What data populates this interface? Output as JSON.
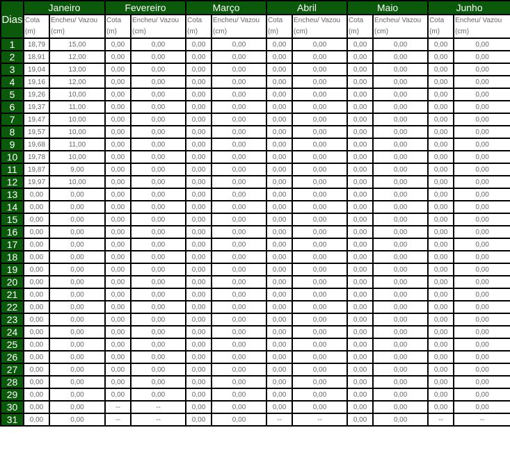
{
  "header": {
    "dias": "Dias",
    "months": [
      "Janeiro",
      "Fevereiro",
      "Março",
      "Abril",
      "Maio",
      "Junho"
    ],
    "cota_label": "Cota (m)",
    "encheu_label": "Encheu/ Vazou (cm)"
  },
  "colors": {
    "header_green": "#0b5a0b",
    "border": "#000000",
    "text": "#666666"
  },
  "rows": [
    [
      "18,79",
      "15,00",
      "0,00",
      "0,00",
      "0,00",
      "0,00",
      "0,00",
      "0,00",
      "0,00",
      "0,00",
      "0,00",
      "0,00"
    ],
    [
      "18,91",
      "12,00",
      "0,00",
      "0,00",
      "0,00",
      "0,00",
      "0,00",
      "0,00",
      "0,00",
      "0,00",
      "0,00",
      "0,00"
    ],
    [
      "19,04",
      "13,00",
      "0,00",
      "0,00",
      "0,00",
      "0,00",
      "0,00",
      "0,00",
      "0,00",
      "0,00",
      "0,00",
      "0,00"
    ],
    [
      "19,16",
      "12,00",
      "0,00",
      "0,00",
      "0,00",
      "0,00",
      "0,00",
      "0,00",
      "0,00",
      "0,00",
      "0,00",
      "0,00"
    ],
    [
      "19,26",
      "10,00",
      "0,00",
      "0,00",
      "0,00",
      "0,00",
      "0,00",
      "0,00",
      "0,00",
      "0,00",
      "0,00",
      "0,00"
    ],
    [
      "19,37",
      "11,00",
      "0,00",
      "0,00",
      "0,00",
      "0,00",
      "0,00",
      "0,00",
      "0,00",
      "0,00",
      "0,00",
      "0,00"
    ],
    [
      "19,47",
      "10,00",
      "0,00",
      "0,00",
      "0,00",
      "0,00",
      "0,00",
      "0,00",
      "0,00",
      "0,00",
      "0,00",
      "0,00"
    ],
    [
      "19,57",
      "10,00",
      "0,00",
      "0,00",
      "0,00",
      "0,00",
      "0,00",
      "0,00",
      "0,00",
      "0,00",
      "0,00",
      "0,00"
    ],
    [
      "19,68",
      "11,00",
      "0,00",
      "0,00",
      "0,00",
      "0,00",
      "0,00",
      "0,00",
      "0,00",
      "0,00",
      "0,00",
      "0,00"
    ],
    [
      "19,78",
      "10,00",
      "0,00",
      "0,00",
      "0,00",
      "0,00",
      "0,00",
      "0,00",
      "0,00",
      "0,00",
      "0,00",
      "0,00"
    ],
    [
      "19,87",
      "9,00",
      "0,00",
      "0,00",
      "0,00",
      "0,00",
      "0,00",
      "0,00",
      "0,00",
      "0,00",
      "0,00",
      "0,00"
    ],
    [
      "19,97",
      "10,00",
      "0,00",
      "0,00",
      "0,00",
      "0,00",
      "0,00",
      "0,00",
      "0,00",
      "0,00",
      "0,00",
      "0,00"
    ],
    [
      "0,00",
      "0,00",
      "0,00",
      "0,00",
      "0,00",
      "0,00",
      "0,00",
      "0,00",
      "0,00",
      "0,00",
      "0,00",
      "0,00"
    ],
    [
      "0,00",
      "0,00",
      "0,00",
      "0,00",
      "0,00",
      "0,00",
      "0,00",
      "0,00",
      "0,00",
      "0,00",
      "0,00",
      "0,00"
    ],
    [
      "0,00",
      "0,00",
      "0,00",
      "0,00",
      "0,00",
      "0,00",
      "0,00",
      "0,00",
      "0,00",
      "0,00",
      "0,00",
      "0,00"
    ],
    [
      "0,00",
      "0,00",
      "0,00",
      "0,00",
      "0,00",
      "0,00",
      "0,00",
      "0,00",
      "0,00",
      "0,00",
      "0,00",
      "0,00"
    ],
    [
      "0,00",
      "0,00",
      "0,00",
      "0,00",
      "0,00",
      "0,00",
      "0,00",
      "0,00",
      "0,00",
      "0,00",
      "0,00",
      "0,00"
    ],
    [
      "0,00",
      "0,00",
      "0,00",
      "0,00",
      "0,00",
      "0,00",
      "0,00",
      "0,00",
      "0,00",
      "0,00",
      "0,00",
      "0,00"
    ],
    [
      "0,00",
      "0,00",
      "0,00",
      "0,00",
      "0,00",
      "0,00",
      "0,00",
      "0,00",
      "0,00",
      "0,00",
      "0,00",
      "0,00"
    ],
    [
      "0,00",
      "0,00",
      "0,00",
      "0,00",
      "0,00",
      "0,00",
      "0,00",
      "0,00",
      "0,00",
      "0,00",
      "0,00",
      "0,00"
    ],
    [
      "0,00",
      "0,00",
      "0,00",
      "0,00",
      "0,00",
      "0,00",
      "0,00",
      "0,00",
      "0,00",
      "0,00",
      "0,00",
      "0,00"
    ],
    [
      "0,00",
      "0,00",
      "0,00",
      "0,00",
      "0,00",
      "0,00",
      "0,00",
      "0,00",
      "0,00",
      "0,00",
      "0,00",
      "0,00"
    ],
    [
      "0,00",
      "0,00",
      "0,00",
      "0,00",
      "0,00",
      "0,00",
      "0,00",
      "0,00",
      "0,00",
      "0,00",
      "0,00",
      "0,00"
    ],
    [
      "0,00",
      "0,00",
      "0,00",
      "0,00",
      "0,00",
      "0,00",
      "0,00",
      "0,00",
      "0,00",
      "0,00",
      "0,00",
      "0,00"
    ],
    [
      "0,00",
      "0,00",
      "0,00",
      "0,00",
      "0,00",
      "0,00",
      "0,00",
      "0,00",
      "0,00",
      "0,00",
      "0,00",
      "0,00"
    ],
    [
      "0,00",
      "0,00",
      "0,00",
      "0,00",
      "0,00",
      "0,00",
      "0,00",
      "0,00",
      "0,00",
      "0,00",
      "0,00",
      "0,00"
    ],
    [
      "0,00",
      "0,00",
      "0,00",
      "0,00",
      "0,00",
      "0,00",
      "0,00",
      "0,00",
      "0,00",
      "0,00",
      "0,00",
      "0,00"
    ],
    [
      "0,00",
      "0,00",
      "0,00",
      "0,00",
      "0,00",
      "0,00",
      "0,00",
      "0,00",
      "0,00",
      "0,00",
      "0,00",
      "0,00"
    ],
    [
      "0,00",
      "0,00",
      "0,00",
      "0,00",
      "0,00",
      "0,00",
      "0,00",
      "0,00",
      "0,00",
      "0,00",
      "0,00",
      "0,00"
    ],
    [
      "0,00",
      "0,00",
      "--",
      "--",
      "0,00",
      "0,00",
      "0,00",
      "0,00",
      "0,00",
      "0,00",
      "0,00",
      "0,00"
    ],
    [
      "0,00",
      "0,00",
      "--",
      "--",
      "0,00",
      "0,00",
      "--",
      "--",
      "0,00",
      "0,00",
      "--",
      "--"
    ]
  ]
}
